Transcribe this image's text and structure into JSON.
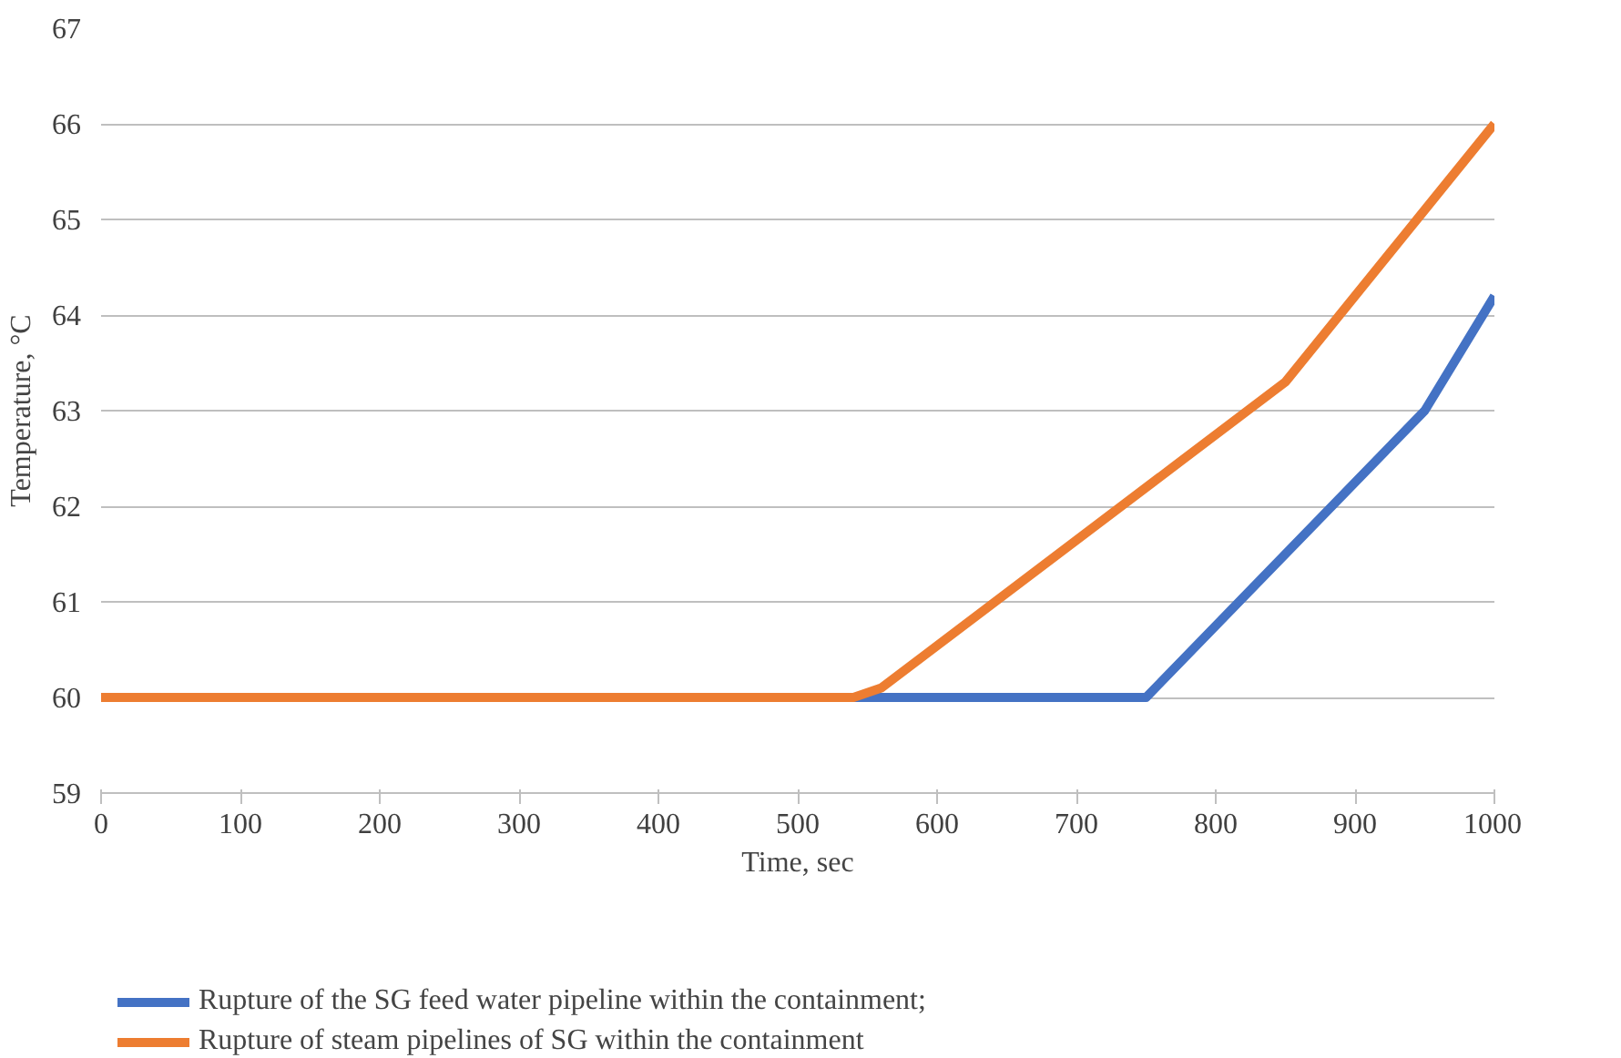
{
  "chart_data": {
    "type": "line",
    "xlabel": "Time, sec",
    "ylabel": "Temperature, °C",
    "xlim": [
      0,
      1000
    ],
    "xticks": [
      0,
      100,
      200,
      300,
      400,
      500,
      600,
      700,
      800,
      900,
      1000
    ],
    "ylim": [
      59,
      67
    ],
    "yticks": [
      59,
      60,
      61,
      62,
      63,
      64,
      65,
      66,
      67
    ],
    "grid": "y",
    "legend": "bottom",
    "line_style": "solid",
    "series": [
      {
        "name": "Rupture of the SG feed water pipeline within the containment;",
        "color": "#4472c4",
        "x": [
          0,
          540,
          750,
          950,
          1000
        ],
        "values": [
          60,
          60,
          60,
          63,
          64.2
        ]
      },
      {
        "name": "Rupture of steam pipelines of SG within the containment",
        "color": "#ed7d31",
        "x": [
          0,
          540,
          560,
          850,
          950,
          1000
        ],
        "values": [
          60,
          60,
          60.1,
          63.3,
          65.1,
          66
        ]
      }
    ]
  }
}
